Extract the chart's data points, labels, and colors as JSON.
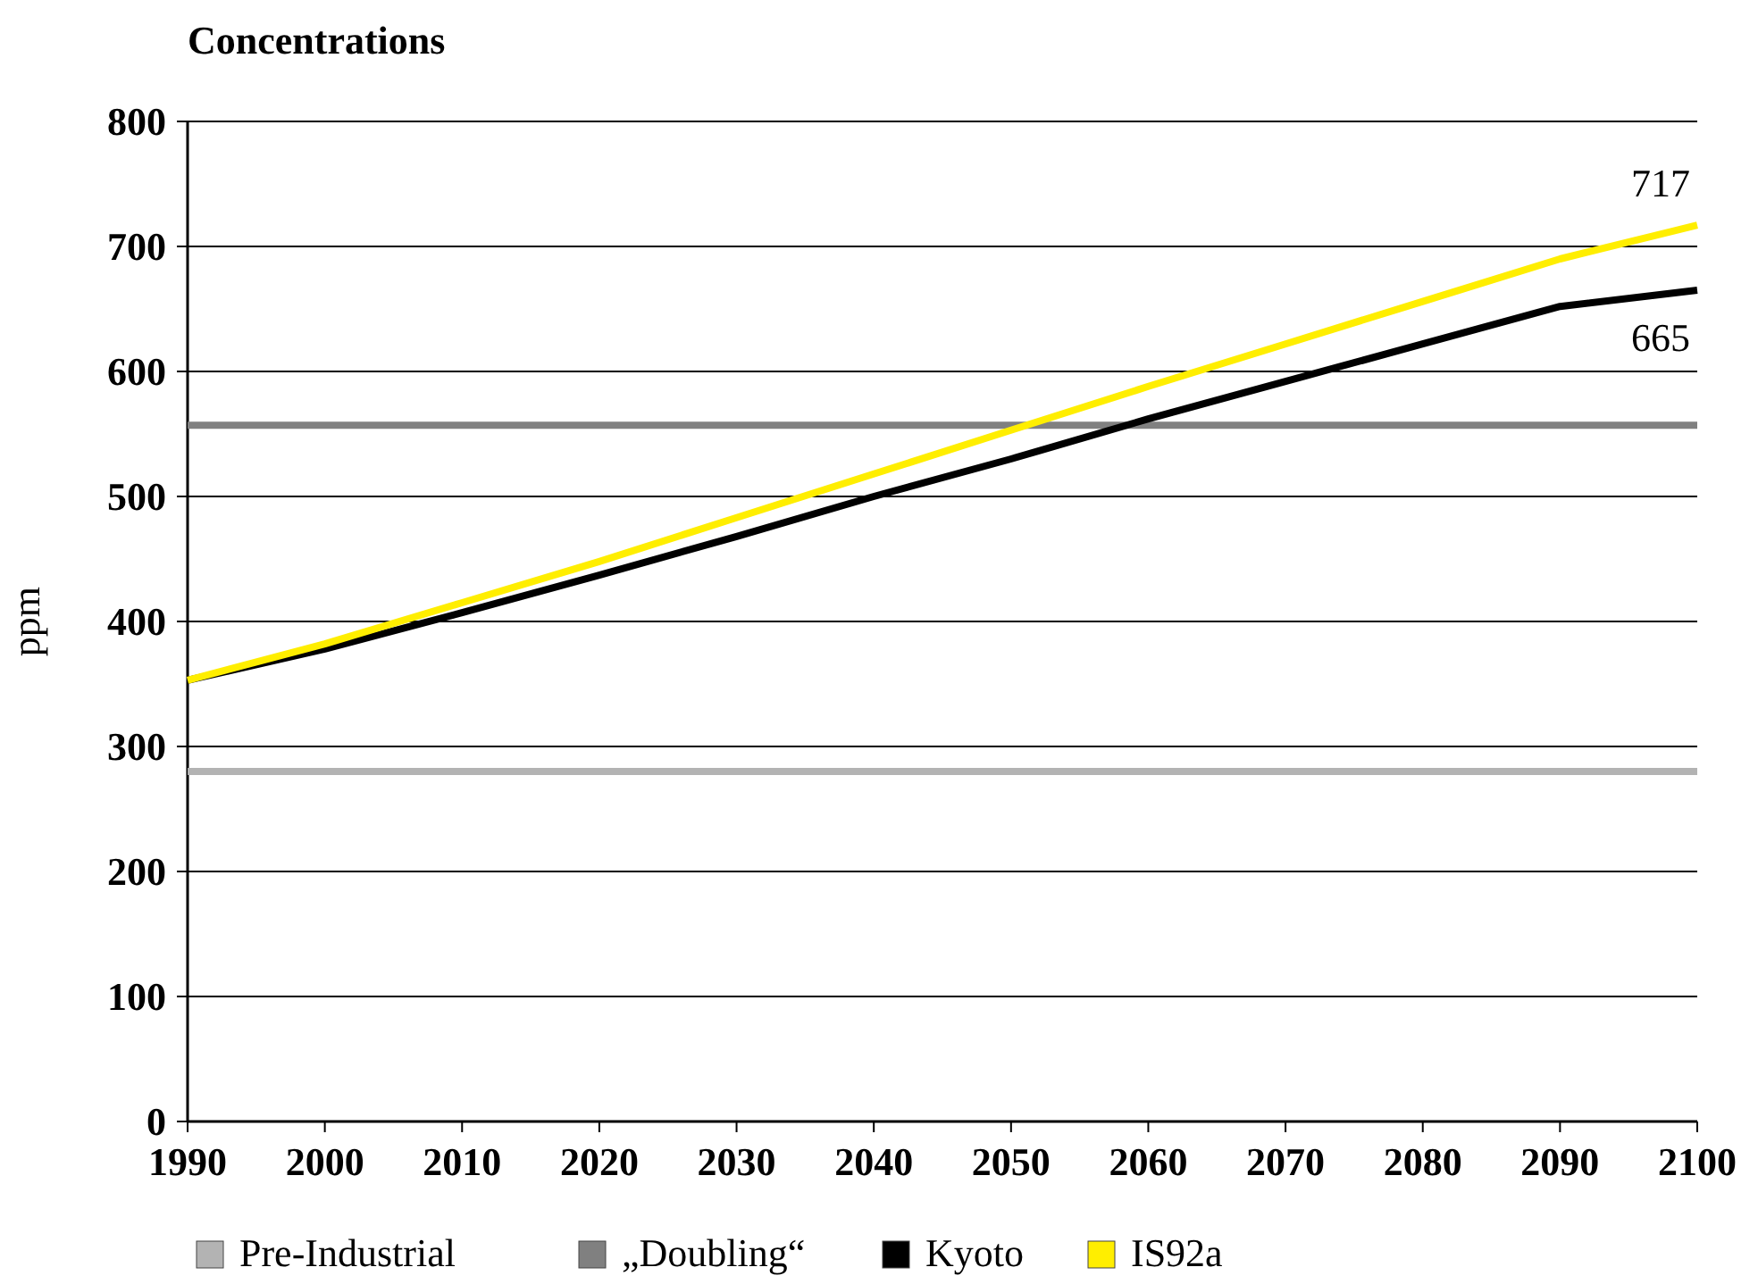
{
  "chart_data": {
    "type": "line",
    "title": "Concentrations",
    "ylabel": "ppm",
    "x": [
      1990,
      2000,
      2010,
      2020,
      2030,
      2040,
      2050,
      2060,
      2070,
      2080,
      2090,
      2100
    ],
    "series": [
      {
        "name": "Pre-Industrial",
        "color": "#b3b3b3",
        "values": [
          280,
          280,
          280,
          280,
          280,
          280,
          280,
          280,
          280,
          280,
          280,
          280
        ]
      },
      {
        "name": "„Doubling“",
        "color": "#808080",
        "values": [
          557,
          557,
          557,
          557,
          557,
          557,
          557,
          557,
          557,
          557,
          557,
          557
        ]
      },
      {
        "name": "Kyoto",
        "color": "#000000",
        "values": [
          353,
          378,
          407,
          437,
          468,
          500,
          530,
          562,
          592,
          622,
          652,
          665
        ],
        "value_labels": [
          null,
          null,
          null,
          null,
          null,
          null,
          null,
          null,
          null,
          null,
          null,
          "665"
        ]
      },
      {
        "name": "IS92a",
        "color": "#ffee00",
        "values": [
          353,
          382,
          415,
          448,
          483,
          518,
          553,
          588,
          622,
          656,
          690,
          717
        ],
        "value_labels": [
          null,
          null,
          null,
          null,
          null,
          null,
          null,
          null,
          null,
          null,
          null,
          "717"
        ]
      }
    ],
    "xlim": [
      1990,
      2100
    ],
    "xticks": [
      1990,
      2000,
      2010,
      2020,
      2030,
      2040,
      2050,
      2060,
      2070,
      2080,
      2090,
      2100
    ],
    "ylim": [
      0,
      800
    ],
    "yticks": [
      0,
      100,
      200,
      300,
      400,
      500,
      600,
      700,
      800
    ],
    "grid": "y",
    "legend": "bottom",
    "marker": "none",
    "line_style": "solid"
  }
}
